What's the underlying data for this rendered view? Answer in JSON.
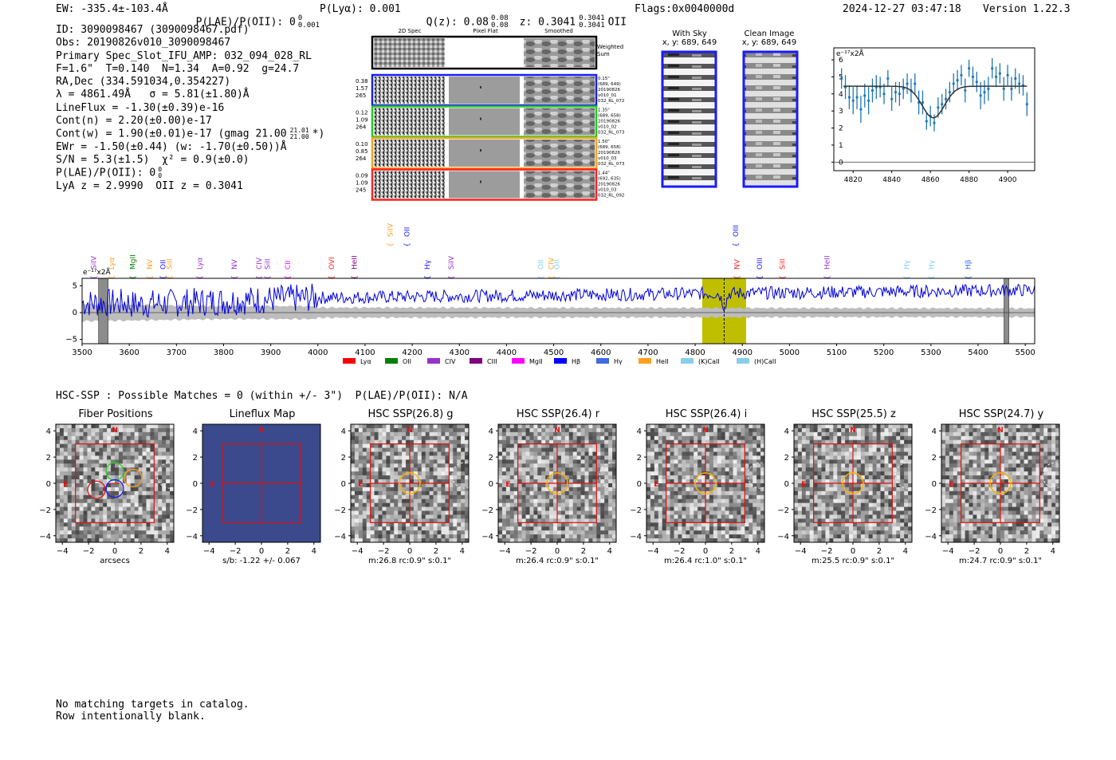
{
  "header": {
    "ew": "EW: -335.4±-103.4Å",
    "plae": "P(LAE)/P(OII): 0",
    "plae_sup": "0",
    "plae_sub": "0.001",
    "plya": "P(Lyα): 0.001",
    "qz": "Q(z): 0.08",
    "qz_sup": "0.08",
    "qz_sub": "0.08",
    "z": "z: 0.3041",
    "z_sup": "0.3041",
    "z_sub": "0.3041",
    "z_line": "OII",
    "flags": "Flags:0x0040000d",
    "datetime": "2024-12-27 03:47:18",
    "version": "Version 1.22.3"
  },
  "info": {
    "id": "ID: 3090098467 (3090098467.pdf)",
    "obs": "Obs: 20190826v010_3090098467",
    "primary": "Primary Spec_Slot_IFU_AMP: 032_094_028_RL",
    "f": "F=1.6\"  T=0.140  N=1.34  A=0.92  g=24.7",
    "radec": "RA,Dec (334.591034,0.354227)",
    "lambda": "λ = 4861.49Å   σ = 5.81(±1.80)Å",
    "lineflux": "LineFlux = -1.30(±0.39)e-16",
    "contn": "Cont(n) = 2.20(±0.00)e-17",
    "contw": "Cont(w) = 1.90(±0.01)e-17 (gmag 21.00",
    "contw_sup": "21.01",
    "contw_sub": "21.00",
    "contw_end": "*)",
    "ewr": "EWr = -1.50(±0.44) (w: -1.70(±0.50))Å",
    "sn": "S/N = 5.3(±1.5)  χ² = 0.9(±0.0)",
    "plae_line": "P(LAE)/P(OII): 0",
    "plae_sup": "0",
    "plae_sub": "0",
    "lya": "LyA z = 2.9990  OII z = 0.3041"
  },
  "cutouts": {
    "col_2d": "2D Spec",
    "col_flat": "Pixel Flat",
    "col_smooth": "Smoothed",
    "weighted": "Weighted",
    "sum": "Sum",
    "fibers": [
      {
        "color": "#1a1aff",
        "w1": "0.38",
        "w2": "1.57",
        "w3": "265",
        "i1": "0.15\"",
        "i2": "(689, 649)",
        "i3": "20190826",
        "i4": "v010_01",
        "i5": "032_RL_072"
      },
      {
        "color": "#22cc22",
        "w1": "0.12",
        "w2": "1.09",
        "w3": "264",
        "i1": "1.35\"",
        "i2": "(689, 658)",
        "i3": "20190826",
        "i4": "v010_02",
        "i5": "032_RL_073"
      },
      {
        "color": "#ff9f1c",
        "w1": "0.10",
        "w2": "0.85",
        "w3": "264",
        "i1": "1.50\"",
        "i2": "(689, 658)",
        "i3": "20190826",
        "i4": "v010_03",
        "i5": "032_RL_073"
      },
      {
        "color": "#ff2020",
        "w1": "0.09",
        "w2": "1.09",
        "w3": "245",
        "i1": "1.44\"",
        "i2": "(692, 635)",
        "i3": "20190826",
        "i4": "v010_03",
        "i5": "032_RL_092"
      }
    ],
    "with_sky_title": "With Sky",
    "with_sky_xy": "x, y: 689, 649",
    "clean_title": "Clean Image",
    "clean_xy": "x, y: 689, 649"
  },
  "zoom_chart": {
    "type": "scatter",
    "unit": "e⁻¹⁷x2Å",
    "x_ticks": [
      4820,
      4840,
      4860,
      4880,
      4900
    ],
    "y_ticks": [
      0,
      1,
      2,
      3,
      4,
      5,
      6
    ],
    "xlim": [
      4810,
      4914
    ],
    "ylim": [
      -0.5,
      6.7
    ],
    "continuum": 4.45,
    "gauss": {
      "center": 4861.5,
      "sigma": 5.81,
      "amp": -1.85
    },
    "points": [
      {
        "x": 4814,
        "y": 4.9,
        "e": 0.6
      },
      {
        "x": 4816,
        "y": 4.4,
        "e": 0.7
      },
      {
        "x": 4818,
        "y": 3.8,
        "e": 0.7
      },
      {
        "x": 4820,
        "y": 3.6,
        "e": 0.8
      },
      {
        "x": 4822,
        "y": 3.8,
        "e": 0.7
      },
      {
        "x": 4824,
        "y": 3.1,
        "e": 0.8
      },
      {
        "x": 4826,
        "y": 3.9,
        "e": 0.7
      },
      {
        "x": 4828,
        "y": 3.6,
        "e": 0.8
      },
      {
        "x": 4830,
        "y": 4.2,
        "e": 0.7
      },
      {
        "x": 4832,
        "y": 4.4,
        "e": 0.7
      },
      {
        "x": 4834,
        "y": 4.4,
        "e": 0.6
      },
      {
        "x": 4836,
        "y": 4.0,
        "e": 0.6
      },
      {
        "x": 4838,
        "y": 4.9,
        "e": 0.5
      },
      {
        "x": 4840,
        "y": 3.7,
        "e": 0.7
      },
      {
        "x": 4842,
        "y": 4.1,
        "e": 0.6
      },
      {
        "x": 4844,
        "y": 4.0,
        "e": 0.7
      },
      {
        "x": 4846,
        "y": 4.3,
        "e": 0.6
      },
      {
        "x": 4848,
        "y": 4.6,
        "e": 0.6
      },
      {
        "x": 4850,
        "y": 4.2,
        "e": 0.7
      },
      {
        "x": 4852,
        "y": 4.6,
        "e": 0.6
      },
      {
        "x": 4854,
        "y": 3.5,
        "e": 0.7
      },
      {
        "x": 4856,
        "y": 3.5,
        "e": 0.7
      },
      {
        "x": 4858,
        "y": 2.4,
        "e": 0.5
      },
      {
        "x": 4860,
        "y": 2.7,
        "e": 0.6
      },
      {
        "x": 4862,
        "y": 2.3,
        "e": 0.5
      },
      {
        "x": 4864,
        "y": 3.2,
        "e": 0.6
      },
      {
        "x": 4866,
        "y": 3.4,
        "e": 0.6
      },
      {
        "x": 4868,
        "y": 3.7,
        "e": 0.6
      },
      {
        "x": 4870,
        "y": 4.1,
        "e": 0.6
      },
      {
        "x": 4872,
        "y": 4.6,
        "e": 0.6
      },
      {
        "x": 4874,
        "y": 4.8,
        "e": 0.6
      },
      {
        "x": 4876,
        "y": 5.1,
        "e": 0.6
      },
      {
        "x": 4878,
        "y": 4.2,
        "e": 0.7
      },
      {
        "x": 4880,
        "y": 5.5,
        "e": 0.5
      },
      {
        "x": 4882,
        "y": 5.0,
        "e": 0.6
      },
      {
        "x": 4884,
        "y": 4.7,
        "e": 0.6
      },
      {
        "x": 4886,
        "y": 3.9,
        "e": 0.8
      },
      {
        "x": 4888,
        "y": 4.1,
        "e": 0.7
      },
      {
        "x": 4890,
        "y": 4.3,
        "e": 0.7
      },
      {
        "x": 4892,
        "y": 5.5,
        "e": 0.6
      },
      {
        "x": 4894,
        "y": 5.0,
        "e": 0.6
      },
      {
        "x": 4896,
        "y": 5.2,
        "e": 0.6
      },
      {
        "x": 4898,
        "y": 4.3,
        "e": 0.7
      },
      {
        "x": 4900,
        "y": 5.1,
        "e": 0.6
      },
      {
        "x": 4902,
        "y": 4.3,
        "e": 0.7
      },
      {
        "x": 4904,
        "y": 4.9,
        "e": 0.6
      },
      {
        "x": 4906,
        "y": 4.6,
        "e": 0.6
      },
      {
        "x": 4908,
        "y": 4.5,
        "e": 0.6
      },
      {
        "x": 4910,
        "y": 3.4,
        "e": 0.7
      }
    ]
  },
  "spectrum_chart": {
    "type": "line",
    "unit": "e⁻¹⁷x2Å",
    "xlim": [
      3500,
      5520
    ],
    "ylim": [
      -5.8,
      6.4
    ],
    "x_ticks": [
      3500,
      3600,
      3700,
      3800,
      3900,
      4000,
      4100,
      4200,
      4300,
      4400,
      4500,
      4600,
      4700,
      4800,
      4900,
      5000,
      5100,
      5200,
      5300,
      5400,
      5500
    ],
    "y_ticks": [
      -5,
      0,
      5
    ],
    "highlight": [
      4815,
      4908
    ],
    "line_center": 4861.5,
    "masked": [
      [
        3535,
        3555
      ],
      [
        5455,
        5465
      ]
    ],
    "lines_top": [
      {
        "label": "SiIV",
        "x": 3530,
        "color": "#9932CC"
      },
      {
        "label": "Lyα",
        "x": 3568,
        "color": "#ff9f1c"
      },
      {
        "label": "MgII",
        "x": 3612,
        "color": "#008000"
      },
      {
        "label": "NV",
        "x": 3649,
        "color": "#ff9f1c"
      },
      {
        "label": "OII",
        "x": 3677,
        "color": "#1a1aff"
      },
      {
        "label": "SiII",
        "x": 3690,
        "color": "#ff9f1c"
      },
      {
        "label": "Lyα",
        "x": 3754,
        "color": "#9932CC"
      },
      {
        "label": "NV",
        "x": 3828,
        "color": "#9932CC"
      },
      {
        "label": "CIV",
        "x": 3880,
        "color": "#9932CC"
      },
      {
        "label": "SiII",
        "x": 3898,
        "color": "#9932CC"
      },
      {
        "label": "CII",
        "x": 3941,
        "color": "#ff00ff"
      },
      {
        "label": "OVI",
        "x": 4034,
        "color": "#ff2020"
      },
      {
        "label": "HeII",
        "x": 4082,
        "color": "#800080"
      },
      {
        "label": "Hγ",
        "x": 4237,
        "color": "#1a1aff"
      },
      {
        "label": "SiIV",
        "x": 4288,
        "color": "#9932CC"
      },
      {
        "label": "OII",
        "x": 4478,
        "color": "#87CEEB"
      },
      {
        "label": "CIV",
        "x": 4500,
        "color": "#ff9f1c"
      },
      {
        "label": "OII",
        "x": 4512,
        "color": "#87CEEB"
      },
      {
        "label": "NV",
        "x": 4894,
        "color": "#ff2020"
      },
      {
        "label": "OIII",
        "x": 4942,
        "color": "#1a1aff"
      },
      {
        "label": "SiII",
        "x": 4990,
        "color": "#ff2020"
      },
      {
        "label": "HeII",
        "x": 5085,
        "color": "#9932CC"
      },
      {
        "label": "Hγ",
        "x": 5254,
        "color": "#87CEEB"
      },
      {
        "label": "Hγ",
        "x": 5306,
        "color": "#87CEEB"
      },
      {
        "label": "Hβ",
        "x": 5384,
        "color": "#4169E1"
      }
    ],
    "lines_upper": [
      {
        "label": "SiIV",
        "x": 4158,
        "color": "#ff9f1c"
      },
      {
        "label": "OII",
        "x": 4194,
        "color": "#1a1aff"
      },
      {
        "label": "OIII",
        "x": 4891,
        "color": "#1a1aff"
      }
    ],
    "legend": [
      {
        "label": "Lyα",
        "color": "#ff0000"
      },
      {
        "label": "OII",
        "color": "#008000"
      },
      {
        "label": "CIV",
        "color": "#9932CC"
      },
      {
        "label": "CIII",
        "color": "#800080"
      },
      {
        "label": "MgII",
        "color": "#ff00ff"
      },
      {
        "label": "Hβ",
        "color": "#0000ff"
      },
      {
        "label": "Hγ",
        "color": "#4169E1"
      },
      {
        "label": "HeII",
        "color": "#ff9f1c"
      },
      {
        "label": "(K)CaII",
        "color": "#87CEEB"
      },
      {
        "label": "(H)CaII",
        "color": "#87CEEB"
      }
    ]
  },
  "hsc": {
    "summary": "HSC-SSP : Possible Matches = 0 (within +/- 3\")  P(LAE)/P(OII): N/A",
    "xlim": [
      -4.5,
      4.5
    ],
    "ticks": [
      4,
      2,
      0,
      -2,
      -4
    ],
    "x_tick_labels": [
      "−4",
      "−2",
      "0",
      "2",
      "4"
    ],
    "y_tick_labels": [
      "4",
      "2",
      "0",
      "−2",
      "−4"
    ],
    "north": "N",
    "east": "E",
    "panels": [
      {
        "title": "Fiber Positions",
        "caption": "arcsecs",
        "kind": "fibers"
      },
      {
        "title": "Lineflux Map",
        "caption": "s/b: -1.22 +/- 0.067",
        "kind": "lineflux"
      },
      {
        "title": "HSC SSP(26.8) g",
        "caption": "m:26.8 rc:0.9\"  s:0.1\"",
        "kind": "img"
      },
      {
        "title": "HSC SSP(26.4) r",
        "caption": "m:26.4 rc:0.9\"  s:0.1\"",
        "kind": "img"
      },
      {
        "title": "HSC SSP(26.4) i",
        "caption": "m:26.4 rc:1.0\"  s:0.1\"",
        "kind": "img"
      },
      {
        "title": "HSC SSP(25.5) z",
        "caption": "m:25.5 rc:0.9\"  s:0.1\"",
        "kind": "img"
      },
      {
        "title": "HSC SSP(24.7) y",
        "caption": "m:24.7 rc:0.9\"  s:0.1\"",
        "kind": "img"
      }
    ]
  },
  "footer": {
    "line1": "No matching targets in catalog.",
    "line2": "Row intentionally blank."
  }
}
